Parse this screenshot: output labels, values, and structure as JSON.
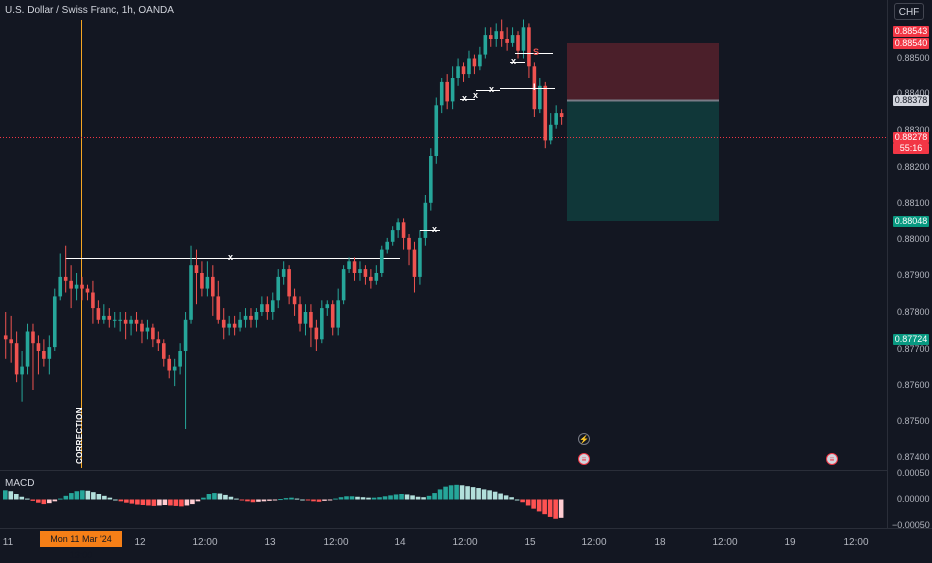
{
  "header": {
    "symbol_title": "U.S. Dollar / Swiss Franc, 1h, OANDA",
    "currency_button": "CHF"
  },
  "price_axis": {
    "labels": [
      "0.88500",
      "0.88400",
      "0.88300",
      "0.88200",
      "0.88100",
      "0.88000",
      "0.87900",
      "0.87800",
      "0.87700",
      "0.87600",
      "0.87500",
      "0.87400"
    ],
    "tags": {
      "top_red_1": "0.88543",
      "top_red_2": "0.88540",
      "entry": "0.88378",
      "current_price": "0.88278",
      "countdown": "55:16",
      "take_profit": "0.88048",
      "stop_lower": "0.87724"
    },
    "colors": {
      "up": "#26a69a",
      "down": "#ef5350",
      "tp": "#089981",
      "sl": "#f23645"
    }
  },
  "time_axis": {
    "highlighted": "Mon 11 Mar '24  13:00",
    "labels": [
      "11",
      "12",
      "12:00",
      "13",
      "12:00",
      "14",
      "12:00",
      "15",
      "12:00",
      "18",
      "12:00",
      "19",
      "12:00"
    ]
  },
  "annotations": {
    "correction": "CORRECTION",
    "range_marks": [
      "x",
      "x",
      "x",
      "x",
      "x",
      "x",
      "S",
      "I"
    ]
  },
  "macd": {
    "label": "MACD",
    "axis_labels": [
      "0.00050",
      "0.00000",
      "−0.00050"
    ]
  },
  "chart_data": {
    "type": "candlestick",
    "timeframe": "1h",
    "y_range": [
      0.8738,
      0.8858
    ],
    "position": {
      "stop_loss": 0.8854,
      "entry": 0.88378,
      "take_profit": 0.88048
    },
    "current_price": 0.88278,
    "high_line": 0.87948,
    "candles": [
      [
        0.8772,
        0.8771,
        0.8766,
        0.8778
      ],
      [
        0.8771,
        0.877,
        0.8765,
        0.8777
      ],
      [
        0.877,
        0.8762,
        0.876,
        0.8773
      ],
      [
        0.8762,
        0.8764,
        0.8755,
        0.8768
      ],
      [
        0.8764,
        0.8773,
        0.8762,
        0.8775
      ],
      [
        0.8773,
        0.877,
        0.8758,
        0.8775
      ],
      [
        0.877,
        0.8768,
        0.8762,
        0.8772
      ],
      [
        0.8768,
        0.8766,
        0.8764,
        0.8771
      ],
      [
        0.8766,
        0.8769,
        0.8762,
        0.8772
      ],
      [
        0.8769,
        0.8782,
        0.8768,
        0.8784
      ],
      [
        0.8782,
        0.8787,
        0.8781,
        0.8793
      ],
      [
        0.8787,
        0.8786,
        0.8783,
        0.8795
      ],
      [
        0.8786,
        0.8784,
        0.8779,
        0.879
      ],
      [
        0.8784,
        0.8785,
        0.8781,
        0.8788
      ],
      [
        0.8785,
        0.8784,
        0.8781,
        0.8787
      ],
      [
        0.8784,
        0.8783,
        0.8781,
        0.8785
      ],
      [
        0.8783,
        0.8779,
        0.8775,
        0.8786
      ],
      [
        0.8779,
        0.8776,
        0.8775,
        0.8781
      ],
      [
        0.8776,
        0.8777,
        0.8775,
        0.878
      ],
      [
        0.8777,
        0.8776,
        0.8774,
        0.8779
      ],
      [
        0.8776,
        0.8776,
        0.8774,
        0.8778
      ],
      [
        0.8776,
        0.8776,
        0.8773,
        0.8778
      ],
      [
        0.8776,
        0.8775,
        0.8771,
        0.8778
      ],
      [
        0.8775,
        0.8776,
        0.8772,
        0.8777
      ],
      [
        0.8776,
        0.8775,
        0.8773,
        0.8778
      ],
      [
        0.8775,
        0.8773,
        0.877,
        0.8776
      ],
      [
        0.8773,
        0.8774,
        0.8771,
        0.8776
      ],
      [
        0.8774,
        0.8771,
        0.8769,
        0.8775
      ],
      [
        0.8771,
        0.877,
        0.8768,
        0.8773
      ],
      [
        0.877,
        0.8766,
        0.8764,
        0.8771
      ],
      [
        0.8766,
        0.8763,
        0.8761,
        0.8767
      ],
      [
        0.8763,
        0.8764,
        0.8759,
        0.8766
      ],
      [
        0.8764,
        0.8768,
        0.8762,
        0.877
      ],
      [
        0.8768,
        0.8776,
        0.8748,
        0.8778
      ],
      [
        0.8776,
        0.879,
        0.8775,
        0.8795
      ],
      [
        0.879,
        0.8788,
        0.878,
        0.8794
      ],
      [
        0.8788,
        0.8784,
        0.8782,
        0.8791
      ],
      [
        0.8784,
        0.8787,
        0.8782,
        0.8791
      ],
      [
        0.8787,
        0.8782,
        0.8777,
        0.879
      ],
      [
        0.8782,
        0.8776,
        0.8775,
        0.8786
      ],
      [
        0.8776,
        0.8774,
        0.8771,
        0.8779
      ],
      [
        0.8774,
        0.8775,
        0.8772,
        0.8777
      ],
      [
        0.8775,
        0.8774,
        0.8772,
        0.8777
      ],
      [
        0.8774,
        0.8776,
        0.8773,
        0.8778
      ],
      [
        0.8776,
        0.8777,
        0.8774,
        0.8779
      ],
      [
        0.8777,
        0.8776,
        0.8774,
        0.8779
      ],
      [
        0.8776,
        0.8778,
        0.8774,
        0.8779
      ],
      [
        0.8778,
        0.878,
        0.8777,
        0.8782
      ],
      [
        0.878,
        0.8778,
        0.8776,
        0.8782
      ],
      [
        0.8778,
        0.8781,
        0.8776,
        0.8783
      ],
      [
        0.8781,
        0.8787,
        0.8779,
        0.8789
      ],
      [
        0.8787,
        0.8789,
        0.8785,
        0.8791
      ],
      [
        0.8789,
        0.8782,
        0.878,
        0.879
      ],
      [
        0.8782,
        0.878,
        0.8777,
        0.8784
      ],
      [
        0.878,
        0.8775,
        0.8773,
        0.8782
      ],
      [
        0.8775,
        0.8778,
        0.8772,
        0.878
      ],
      [
        0.8778,
        0.8774,
        0.8769,
        0.878
      ],
      [
        0.8774,
        0.8771,
        0.8768,
        0.8776
      ],
      [
        0.8771,
        0.8779,
        0.877,
        0.8781
      ],
      [
        0.8779,
        0.878,
        0.8777,
        0.8781
      ],
      [
        0.878,
        0.8774,
        0.8772,
        0.8781
      ],
      [
        0.8774,
        0.8781,
        0.8772,
        0.8784
      ],
      [
        0.8781,
        0.8789,
        0.878,
        0.879
      ],
      [
        0.8789,
        0.8791,
        0.8788,
        0.8792
      ],
      [
        0.8791,
        0.8788,
        0.8786,
        0.8792
      ],
      [
        0.8788,
        0.8789,
        0.8786,
        0.8791
      ],
      [
        0.8789,
        0.8787,
        0.8785,
        0.879
      ],
      [
        0.8787,
        0.8786,
        0.8784,
        0.8789
      ],
      [
        0.8786,
        0.8788,
        0.8785,
        0.879
      ],
      [
        0.8788,
        0.8794,
        0.8787,
        0.8795
      ],
      [
        0.8794,
        0.8796,
        0.8793,
        0.8797
      ],
      [
        0.8796,
        0.8799,
        0.8795,
        0.88
      ],
      [
        0.8799,
        0.8801,
        0.8797,
        0.8802
      ],
      [
        0.8801,
        0.8797,
        0.8794,
        0.8802
      ],
      [
        0.8797,
        0.8794,
        0.879,
        0.8798
      ],
      [
        0.8794,
        0.8787,
        0.8783,
        0.8796
      ],
      [
        0.8787,
        0.8797,
        0.8785,
        0.8799
      ],
      [
        0.8797,
        0.8806,
        0.8795,
        0.8808
      ],
      [
        0.8806,
        0.8818,
        0.8804,
        0.882
      ],
      [
        0.8818,
        0.8831,
        0.8816,
        0.8833
      ],
      [
        0.8831,
        0.8837,
        0.8829,
        0.8838
      ],
      [
        0.8837,
        0.8832,
        0.883,
        0.8839
      ],
      [
        0.8832,
        0.8838,
        0.883,
        0.8841
      ],
      [
        0.8838,
        0.8841,
        0.8836,
        0.8843
      ],
      [
        0.8841,
        0.8839,
        0.8837,
        0.8842
      ],
      [
        0.8839,
        0.8843,
        0.8838,
        0.8845
      ],
      [
        0.8843,
        0.8841,
        0.8839,
        0.8844
      ],
      [
        0.8841,
        0.8844,
        0.884,
        0.8846
      ],
      [
        0.8844,
        0.8849,
        0.8843,
        0.8851
      ],
      [
        0.8849,
        0.8848,
        0.8846,
        0.8851
      ],
      [
        0.8848,
        0.885,
        0.8846,
        0.8852
      ],
      [
        0.885,
        0.8848,
        0.8846,
        0.8853
      ],
      [
        0.8848,
        0.8847,
        0.8845,
        0.8851
      ],
      [
        0.8847,
        0.8849,
        0.8846,
        0.8851
      ],
      [
        0.8849,
        0.8845,
        0.8843,
        0.885
      ],
      [
        0.8845,
        0.8851,
        0.8843,
        0.8853
      ],
      [
        0.8851,
        0.8841,
        0.8838,
        0.8852
      ],
      [
        0.8841,
        0.883,
        0.8828,
        0.8842
      ],
      [
        0.883,
        0.8836,
        0.8829,
        0.8838
      ],
      [
        0.8836,
        0.8822,
        0.882,
        0.8837
      ],
      [
        0.8822,
        0.8826,
        0.8821,
        0.8829
      ],
      [
        0.8826,
        0.8829,
        0.8825,
        0.8831
      ],
      [
        0.8829,
        0.8828,
        0.8826,
        0.883
      ]
    ],
    "macd_histogram": [
      0.0002,
      0.00018,
      0.00012,
      6e-05,
      2e-05,
      -3e-05,
      -7e-05,
      -0.0001,
      -8e-05,
      -4e-05,
      2e-05,
      8e-05,
      0.00014,
      0.00018,
      0.0002,
      0.00019,
      0.00016,
      0.00012,
      8e-05,
      4e-05,
      0.0,
      -4e-05,
      -7e-05,
      -9e-05,
      -0.00011,
      -0.00012,
      -0.00013,
      -0.00014,
      -0.00013,
      -0.00012,
      -0.00013,
      -0.00014,
      -0.00015,
      -0.00013,
      -0.0001,
      -4e-05,
      4e-05,
      0.00012,
      0.00014,
      0.00013,
      0.0001,
      6e-05,
      2e-05,
      -2e-05,
      -4e-05,
      -6e-05,
      -5e-05,
      -4e-05,
      -3e-05,
      -2e-05,
      1e-05,
      3e-05,
      4e-05,
      2e-05,
      0.0,
      -2e-05,
      -4e-05,
      -5e-05,
      -3e-05,
      -1e-05,
      2e-05,
      5e-05,
      7e-05,
      7e-05,
      6e-05,
      5e-05,
      4e-05,
      4e-05,
      5e-05,
      7e-05,
      9e-05,
      0.00011,
      0.00012,
      0.00011,
      9e-05,
      6e-05,
      5e-05,
      8e-05,
      0.00014,
      0.00022,
      0.00028,
      0.00031,
      0.00032,
      0.00031,
      0.00029,
      0.00027,
      0.00025,
      0.00022,
      0.0002,
      0.00017,
      0.00013,
      9e-05,
      5e-05,
      0.0,
      -6e-05,
      -0.00013,
      -0.0002,
      -0.00026,
      -0.00032,
      -0.00038,
      -0.00042,
      -0.0004
    ],
    "macd_range": [
      -0.0006,
      0.0006
    ]
  }
}
